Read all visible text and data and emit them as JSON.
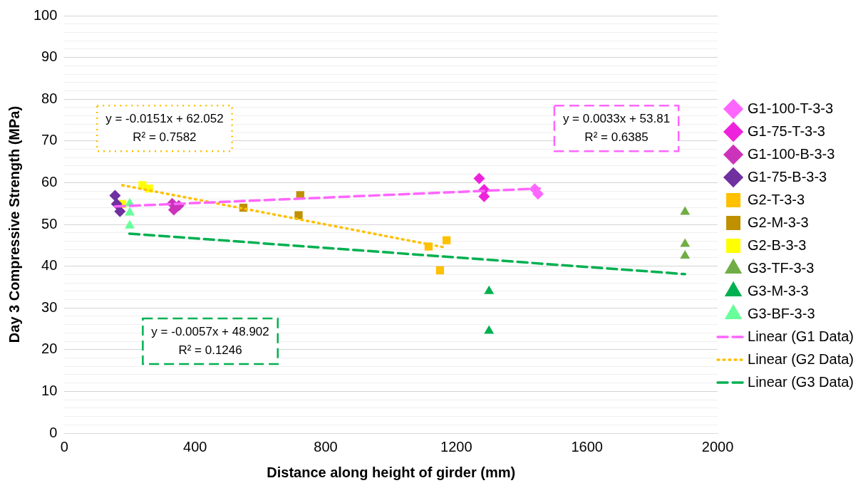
{
  "chart_data": {
    "type": "scatter",
    "xlabel": "Distance along height of girder (mm)",
    "ylabel": "Day 3 Compressive Strength (MPa)",
    "xlim": [
      0,
      2000
    ],
    "xticks": [
      0,
      400,
      800,
      1200,
      1600,
      2000
    ],
    "ylim": [
      0,
      100
    ],
    "yticks": [
      0,
      {
        "value": 2,
        "label": null
      },
      {
        "value": 4,
        "label": null
      },
      {
        "value": 6,
        "label": null
      },
      {
        "value": 8,
        "label": null
      },
      10,
      {
        "value": 12,
        "label": null
      },
      {
        "value": 14,
        "label": null
      },
      {
        "value": 16,
        "label": null
      },
      {
        "value": 18,
        "label": null
      },
      20,
      {
        "value": 22,
        "label": null
      },
      {
        "value": 24,
        "label": null
      },
      {
        "value": 26,
        "label": null
      },
      {
        "value": 28,
        "label": null
      },
      30,
      {
        "value": 32,
        "label": null
      },
      {
        "value": 34,
        "label": null
      },
      {
        "value": 36,
        "label": null
      },
      {
        "value": 38,
        "label": null
      },
      40,
      {
        "value": 42,
        "label": null
      },
      {
        "value": 44,
        "label": null
      },
      {
        "value": 46,
        "label": null
      },
      {
        "value": 48,
        "label": null
      },
      50,
      {
        "value": 52,
        "label": null
      },
      {
        "value": 54,
        "label": null
      },
      {
        "value": 56,
        "label": null
      },
      {
        "value": 58,
        "label": null
      },
      60,
      {
        "value": 62,
        "label": null
      },
      {
        "value": 64,
        "label": null
      },
      {
        "value": 66,
        "label": null
      },
      {
        "value": 68,
        "label": null
      },
      70,
      {
        "value": 72,
        "label": null
      },
      {
        "value": 74,
        "label": null
      },
      {
        "value": 76,
        "label": null
      },
      {
        "value": 78,
        "label": null
      },
      80,
      {
        "value": 82,
        "label": null
      },
      {
        "value": 84,
        "label": null
      },
      {
        "value": 86,
        "label": null
      },
      {
        "value": 88,
        "label": null
      },
      90,
      {
        "value": 92,
        "label": null
      },
      {
        "value": 94,
        "label": null
      },
      {
        "value": 96,
        "label": null
      },
      {
        "value": 98,
        "label": null
      },
      100
    ],
    "grid": "y",
    "legend": "right",
    "series": [
      {
        "name": "G1-100-T-3-3",
        "color": "#ff66ff",
        "marker": "diamond",
        "x": [
          1440,
          1450
        ],
        "values": [
          58.5,
          57.3
        ]
      },
      {
        "name": "G1-75-T-3-3",
        "color": "#ee22dd",
        "marker": "diamond",
        "x": [
          1270,
          1285,
          1285
        ],
        "values": [
          61,
          58.3,
          56.7
        ]
      },
      {
        "name": "G1-100-B-3-3",
        "color": "#cc33bb",
        "marker": "diamond",
        "x": [
          330,
          350,
          335
        ],
        "values": [
          55,
          54.5,
          53.5
        ]
      },
      {
        "name": "G1-75-B-3-3",
        "color": "#7030a0",
        "marker": "diamond",
        "x": [
          155,
          160,
          170
        ],
        "values": [
          56.9,
          54.9,
          53.1
        ]
      },
      {
        "name": "G2-T-3-3",
        "color": "#ffc000",
        "marker": "square",
        "x": [
          1115,
          1150,
          1170
        ],
        "values": [
          44.7,
          39,
          46.2
        ]
      },
      {
        "name": "G2-M-3-3",
        "color": "#bf9000",
        "marker": "square",
        "x": [
          548,
          722,
          717
        ],
        "values": [
          54,
          57,
          52.2
        ]
      },
      {
        "name": "G2-B-3-3",
        "color": "#ffff00",
        "marker": "square",
        "x": [
          177,
          239,
          259
        ],
        "values": [
          54.9,
          59.4,
          58.6
        ]
      },
      {
        "name": "G3-TF-3-3",
        "color": "#70ad47",
        "marker": "triangle",
        "x": [
          1900,
          1900,
          1900
        ],
        "values": [
          53,
          45.3,
          42.5
        ]
      },
      {
        "name": "G3-M-3-3",
        "color": "#00b050",
        "marker": "triangle",
        "x": [
          1300,
          1300
        ],
        "values": [
          34,
          24.5
        ]
      },
      {
        "name": "G3-BF-3-3",
        "color": "#66ff99",
        "marker": "triangle",
        "x": [
          200,
          200,
          200
        ],
        "values": [
          55,
          52.8,
          49.7
        ]
      },
      {
        "name": "Linear (G1 Data)",
        "type": "line",
        "color": "#ff66ff",
        "line_style": "dashed",
        "marker": "none",
        "x": [
          155,
          1455
        ],
        "values": [
          54.3,
          58.6
        ]
      },
      {
        "name": "Linear (G2 Data)",
        "type": "line",
        "color": "#ffc000",
        "line_style": "dotted",
        "marker": "none",
        "x": [
          177,
          1170
        ],
        "values": [
          59.4,
          44.4
        ]
      },
      {
        "name": "Linear (G3 Data)",
        "type": "line",
        "color": "#00b050",
        "line_style": "dashed",
        "marker": "none",
        "x": [
          199,
          1900
        ],
        "values": [
          47.8,
          38.1
        ]
      }
    ],
    "annotations": [
      "y = 0.0033x + 53.81\nR² = 0.6385",
      "y = -0.0151x + 62.052\nR² = 0.7582",
      "y = -0.0057x + 48.902\nR² = 0.1246"
    ]
  }
}
